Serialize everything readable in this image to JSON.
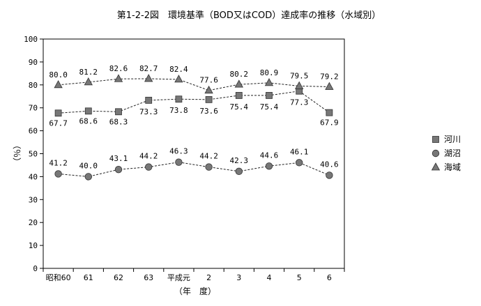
{
  "chart_data": {
    "type": "line",
    "title": "第1-2-2図　環境基準（BOD又はCOD）達成率の推移（水域別）",
    "ylabel": "（％）",
    "xlabel": "（年　度）",
    "ylim": [
      0,
      100
    ],
    "yticks": [
      0,
      10,
      20,
      30,
      40,
      50,
      60,
      70,
      80,
      90,
      100
    ],
    "grid": false,
    "legend_position": "right",
    "categories": [
      "昭和60",
      "61",
      "62",
      "63",
      "平成元",
      "2",
      "3",
      "4",
      "5",
      "6"
    ],
    "series": [
      {
        "name": "河川",
        "marker": "square",
        "color": "#777777",
        "values": [
          67.7,
          68.6,
          68.3,
          73.3,
          73.8,
          73.6,
          75.4,
          75.4,
          77.3,
          67.9
        ]
      },
      {
        "name": "湖沼",
        "marker": "circle",
        "color": "#777777",
        "values": [
          41.2,
          40.0,
          43.1,
          44.2,
          46.3,
          44.2,
          42.3,
          44.6,
          46.1,
          40.6
        ]
      },
      {
        "name": "海域",
        "marker": "triangle",
        "color": "#777777",
        "values": [
          80.0,
          81.2,
          82.6,
          82.7,
          82.4,
          77.6,
          80.2,
          80.9,
          79.5,
          79.2
        ]
      }
    ]
  }
}
